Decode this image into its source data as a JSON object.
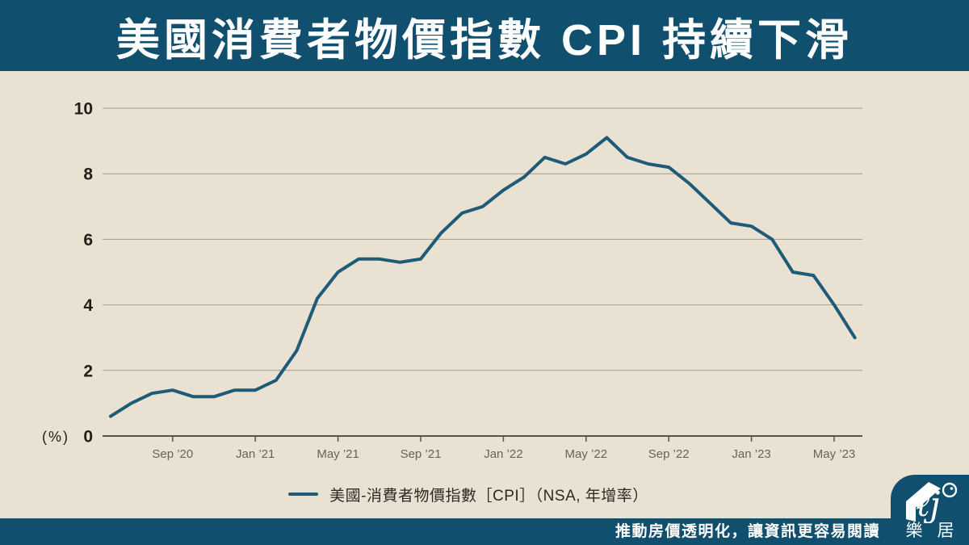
{
  "header": {
    "title": "美國消費者物價指數 CPI 持續下滑"
  },
  "chart_data": {
    "type": "line",
    "title": "美國消費者物價指數 CPI 持續下滑",
    "x": [
      "Jun ’20",
      "Jul ’20",
      "Aug ’20",
      "Sep ’20",
      "Oct ’20",
      "Nov ’20",
      "Dec ’20",
      "Jan ’21",
      "Feb ’21",
      "Mar ’21",
      "Apr ’21",
      "May ’21",
      "Jun ’21",
      "Jul ’21",
      "Aug ’21",
      "Sep ’21",
      "Oct ’21",
      "Nov ’21",
      "Dec ’21",
      "Jan ’22",
      "Feb ’22",
      "Mar ’22",
      "Apr ’22",
      "May ’22",
      "Jun ’22",
      "Jul ’22",
      "Aug ’22",
      "Sep ’22",
      "Oct ’22",
      "Nov ’22",
      "Dec ’22",
      "Jan ’23",
      "Feb ’23",
      "Mar ’23",
      "Apr ’23",
      "May ’23",
      "Jun ’23"
    ],
    "series": [
      {
        "name": "美國-消費者物價指數［CPI］（NSA, 年增率）",
        "values": [
          0.6,
          1.0,
          1.3,
          1.4,
          1.2,
          1.2,
          1.4,
          1.4,
          1.7,
          2.6,
          4.2,
          5.0,
          5.4,
          5.4,
          5.3,
          5.4,
          6.2,
          6.8,
          7.0,
          7.5,
          7.9,
          8.5,
          8.3,
          8.6,
          9.1,
          8.5,
          8.3,
          8.2,
          7.7,
          7.1,
          6.5,
          6.4,
          6.0,
          5.0,
          4.9,
          4.0,
          3.0
        ]
      }
    ],
    "xlabel": "",
    "ylabel": "(%)",
    "ylim": [
      0,
      10
    ],
    "y_ticks": [
      0,
      2,
      4,
      6,
      8,
      10
    ],
    "x_tick_labels": [
      {
        "label": "Sep ’20",
        "index": 3
      },
      {
        "label": "Jan ’21",
        "index": 7
      },
      {
        "label": "May ’21",
        "index": 11
      },
      {
        "label": "Sep ’21",
        "index": 15
      },
      {
        "label": "Jan ’22",
        "index": 19
      },
      {
        "label": "May ’22",
        "index": 23
      },
      {
        "label": "Sep ’22",
        "index": 27
      },
      {
        "label": "Jan ’23",
        "index": 31
      },
      {
        "label": "May ’23",
        "index": 35
      }
    ],
    "grid": true,
    "legend_position": "bottom",
    "line_color": "#1E5B77"
  },
  "legend": {
    "series_label": "美國-消費者物價指數［CPI］（NSA, 年增率）"
  },
  "footer": {
    "tagline": "推動房價透明化，讓資訊更容易閱讀"
  },
  "logo": {
    "script_text": "ℓj",
    "name_char_1": "樂",
    "name_char_2": "居"
  },
  "colors": {
    "banner": "#114F6E",
    "background": "#E9E2D3",
    "line": "#1E5B77",
    "gridline": "#A39B8C",
    "axis": "#5A5442",
    "x_label": "#6A6355",
    "y_label": "#211E18"
  }
}
